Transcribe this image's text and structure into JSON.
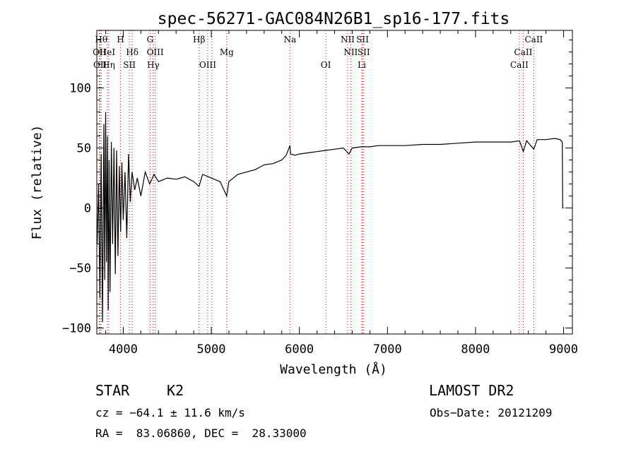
{
  "chart_data": {
    "type": "line",
    "title": "spec-56271-GAC084N26B1_sp16-177.fits",
    "xlabel": "Wavelength (Å)",
    "ylabel": "Flux (relative)",
    "xlim": [
      3700,
      9100
    ],
    "ylim": [
      -105,
      148
    ],
    "xticks": [
      4000,
      5000,
      6000,
      7000,
      8000,
      9000
    ],
    "yticks": [
      -100,
      -50,
      0,
      50,
      100
    ],
    "xtick_labels": [
      "4000",
      "5000",
      "6000",
      "7000",
      "8000",
      "9000"
    ],
    "ytick_labels": [
      "−100",
      "−50",
      "0",
      "50",
      "100"
    ],
    "series": [
      {
        "color": "#000000",
        "x": [
          3705,
          3720,
          3735,
          3750,
          3765,
          3780,
          3790,
          3800,
          3810,
          3820,
          3830,
          3840,
          3850,
          3865,
          3880,
          3895,
          3910,
          3925,
          3940,
          3955,
          3970,
          3985,
          4000,
          4020,
          4040,
          4060,
          4080,
          4100,
          4130,
          4160,
          4200,
          4250,
          4300,
          4350,
          4400,
          4500,
          4600,
          4700,
          4800,
          4861,
          4900,
          5000,
          5100,
          5175,
          5200,
          5300,
          5400,
          5500,
          5600,
          5700,
          5800,
          5850,
          5893,
          5900,
          5950,
          6000,
          6100,
          6200,
          6300,
          6400,
          6500,
          6563,
          6600,
          6700,
          6800,
          6900,
          7000,
          7200,
          7400,
          7600,
          7800,
          8000,
          8200,
          8400,
          8500,
          8542,
          8580,
          8662,
          8700,
          8800,
          8900,
          8960,
          8985,
          8990,
          9000
        ],
        "y": [
          -30,
          20,
          -75,
          45,
          -95,
          70,
          -60,
          80,
          -45,
          60,
          -85,
          40,
          -70,
          55,
          -30,
          50,
          -55,
          48,
          -40,
          35,
          -20,
          38,
          -10,
          30,
          -25,
          45,
          5,
          30,
          15,
          25,
          10,
          30,
          20,
          28,
          22,
          25,
          24,
          26,
          22,
          18,
          28,
          25,
          22,
          10,
          22,
          28,
          30,
          32,
          36,
          37,
          40,
          44,
          52,
          45,
          44,
          45,
          46,
          47,
          48,
          49,
          50,
          45,
          50,
          51,
          51,
          52,
          52,
          52,
          53,
          53,
          54,
          55,
          55,
          55,
          56,
          47,
          56,
          49,
          57,
          57,
          58,
          57,
          55,
          0,
          0
        ]
      }
    ],
    "line_markers": [
      {
        "wavelength": 3750,
        "label": "Hθ",
        "row": 1
      },
      {
        "wavelength": 3730,
        "label": "OII",
        "row": 2
      },
      {
        "wavelength": 3737,
        "label": "OII",
        "row": 3
      },
      {
        "wavelength": 3820,
        "label": "HeI",
        "row": 2
      },
      {
        "wavelength": 3835,
        "label": "Hη",
        "row": 3
      },
      {
        "wavelength": 3970,
        "label": "H",
        "row": 1
      },
      {
        "wavelength": 4102,
        "label": "Hδ",
        "row": 2
      },
      {
        "wavelength": 4070,
        "label": "SII",
        "row": 3
      },
      {
        "wavelength": 4305,
        "label": "G",
        "row": 1
      },
      {
        "wavelength": 4363,
        "label": "OIII",
        "row": 2
      },
      {
        "wavelength": 4340,
        "label": "Hγ",
        "row": 3
      },
      {
        "wavelength": 4861,
        "label": "Hβ",
        "row": 1
      },
      {
        "wavelength": 5175,
        "label": "Mg",
        "row": 2
      },
      {
        "wavelength": 4959,
        "label": "OIII",
        "row": 3
      },
      {
        "wavelength": 5007,
        "label": "",
        "row": 3
      },
      {
        "wavelength": 5893,
        "label": "Na",
        "row": 1
      },
      {
        "wavelength": 6548,
        "label": "NII",
        "row": 1
      },
      {
        "wavelength": 6583,
        "label": "NII",
        "row": 2
      },
      {
        "wavelength": 6300,
        "label": "OI",
        "row": 3
      },
      {
        "wavelength": 6717,
        "label": "SII",
        "row": 1
      },
      {
        "wavelength": 6731,
        "label": "SII",
        "row": 2
      },
      {
        "wavelength": 6708,
        "label": "Li",
        "row": 3
      },
      {
        "wavelength": 8662,
        "label": "CaII",
        "row": 1
      },
      {
        "wavelength": 8542,
        "label": "CaII",
        "row": 2
      },
      {
        "wavelength": 8498,
        "label": "CaII",
        "row": 3
      }
    ]
  },
  "info": {
    "object_class": "STAR",
    "subclass": "K2",
    "survey": "LAMOST DR2",
    "cz": "cz = −64.1 ± 11.6 km/s",
    "obs_date": "Obs−Date: 20121209",
    "coords": "RA =  83.06860, DEC =  28.33000"
  },
  "colors": {
    "spectrum": "#000000",
    "line_marker": "#cc0000",
    "axes": "#000000",
    "background": "#ffffff"
  }
}
